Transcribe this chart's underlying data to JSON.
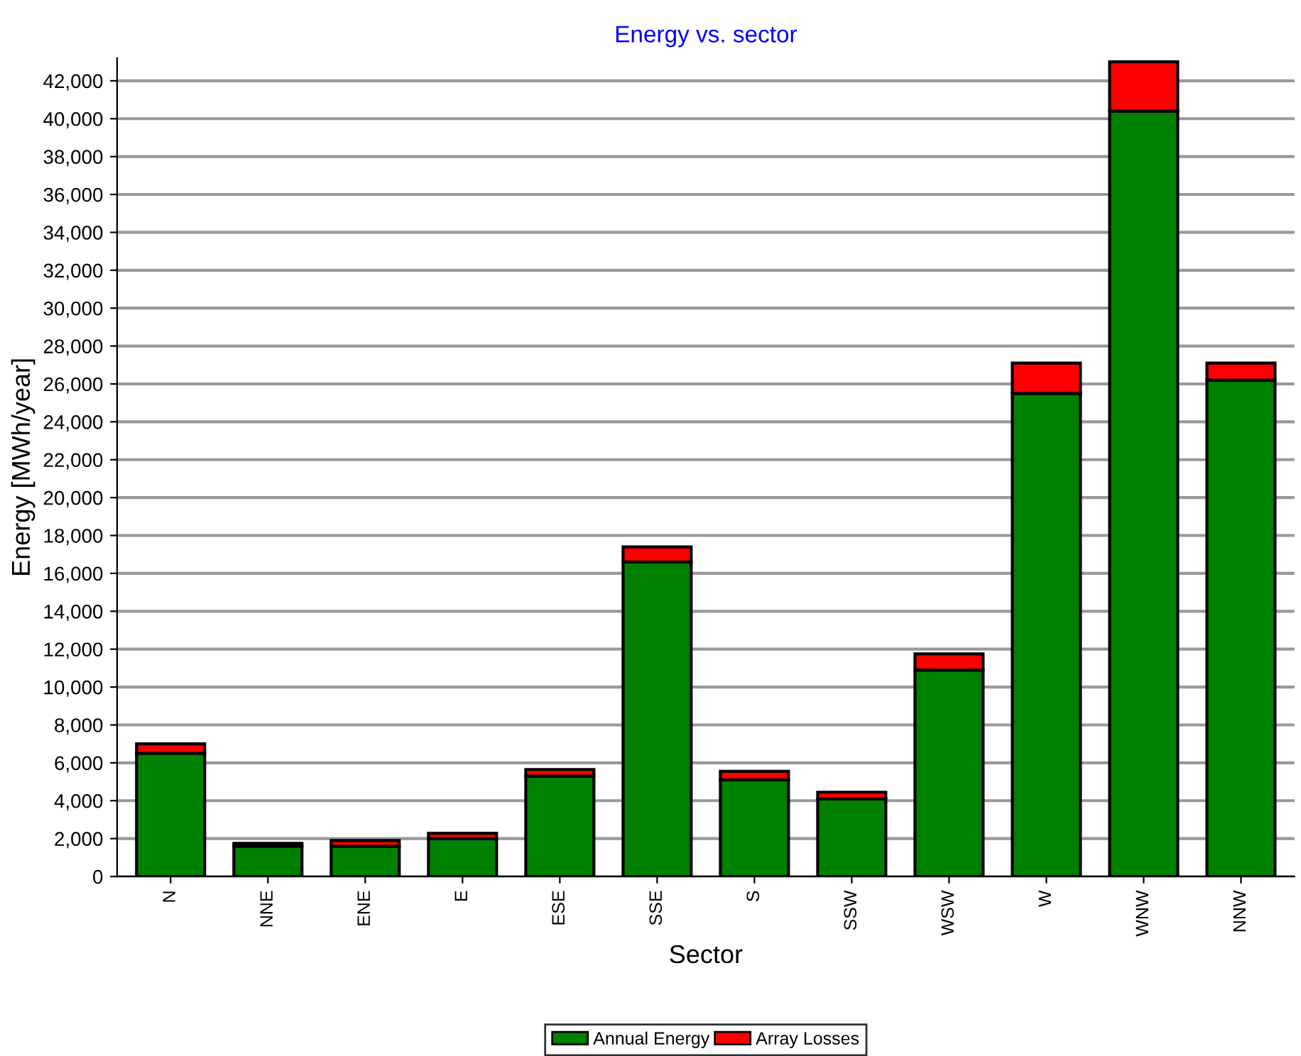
{
  "chart_data": {
    "type": "bar",
    "title": "Energy vs. sector",
    "xlabel": "Sector",
    "ylabel": "Energy [MWh/year]",
    "categories": [
      "N",
      "NNE",
      "ENE",
      "E",
      "ESE",
      "SSE",
      "S",
      "SSW",
      "WSW",
      "W",
      "WNW",
      "NNW"
    ],
    "stacked": true,
    "series": [
      {
        "name": "Annual Energy",
        "color": "#008000",
        "values": [
          6500,
          1600,
          1600,
          2000,
          5300,
          16600,
          5100,
          4100,
          10900,
          25500,
          40400,
          26200
        ]
      },
      {
        "name": "Array Losses",
        "color": "#ff0000",
        "values": [
          500,
          150,
          300,
          280,
          350,
          800,
          450,
          350,
          850,
          1600,
          2600,
          900
        ]
      }
    ],
    "ylim": [
      0,
      43200
    ],
    "yticks": [
      {
        "value": 0,
        "label": "0"
      },
      {
        "value": 2000,
        "label": "2,000"
      },
      {
        "value": 4000,
        "label": "4,000"
      },
      {
        "value": 6000,
        "label": "6,000"
      },
      {
        "value": 8000,
        "label": "8,000"
      },
      {
        "value": 10000,
        "label": "10,000"
      },
      {
        "value": 12000,
        "label": "12,000"
      },
      {
        "value": 14000,
        "label": "14,000"
      },
      {
        "value": 16000,
        "label": "16,000"
      },
      {
        "value": 18000,
        "label": "18,000"
      },
      {
        "value": 20000,
        "label": "20,000"
      },
      {
        "value": 22000,
        "label": "22,000"
      },
      {
        "value": 24000,
        "label": "24,000"
      },
      {
        "value": 26000,
        "label": "26,000"
      },
      {
        "value": 28000,
        "label": "28,000"
      },
      {
        "value": 30000,
        "label": "30,000"
      },
      {
        "value": 32000,
        "label": "32,000"
      },
      {
        "value": 34000,
        "label": "34,000"
      },
      {
        "value": 36000,
        "label": "36,000"
      },
      {
        "value": 38000,
        "label": "38,000"
      },
      {
        "value": 40000,
        "label": "40,000"
      },
      {
        "value": 42000,
        "label": "42,000"
      }
    ],
    "grid": "y",
    "legend": "bottom"
  }
}
